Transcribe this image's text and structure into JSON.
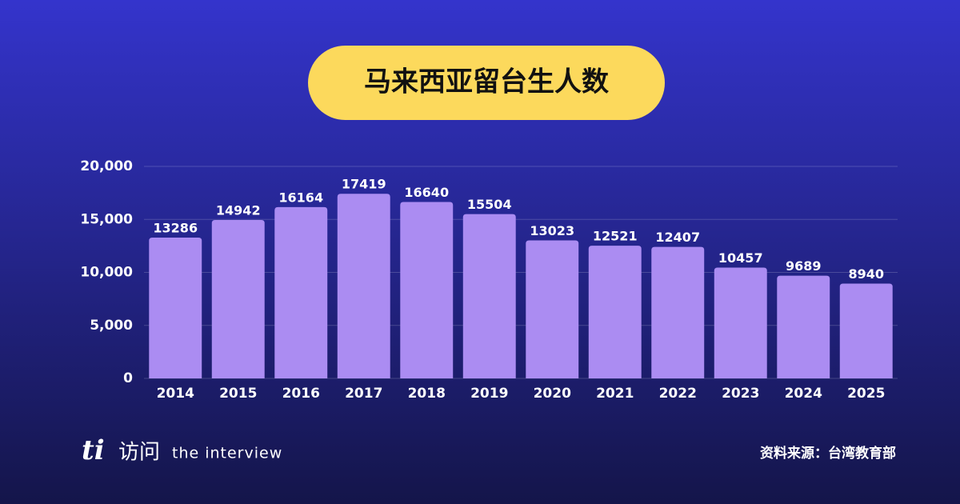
{
  "chart_data": {
    "type": "bar",
    "title": "马来西亚留台生人数",
    "categories": [
      "2014",
      "2015",
      "2016",
      "2017",
      "2018",
      "2019",
      "2020",
      "2021",
      "2022",
      "2023",
      "2024",
      "2025"
    ],
    "values": [
      13286,
      14942,
      16164,
      17419,
      16640,
      15504,
      13023,
      12521,
      12407,
      10457,
      9689,
      8940
    ],
    "color": "#ab8cf2",
    "ylim": [
      0,
      20000
    ],
    "yticks": [
      0,
      {
        "value": 5000,
        "label": "5,000"
      },
      {
        "value": 10000,
        "label": "10,000"
      },
      {
        "value": 15000,
        "label": "15,000"
      },
      {
        "value": 20000,
        "label": "20,000"
      }
    ],
    "grid": true,
    "source": "资料来源：台湾教育部"
  },
  "logo": {
    "mark": "ti",
    "name": "访问",
    "tagline": "the interview"
  }
}
